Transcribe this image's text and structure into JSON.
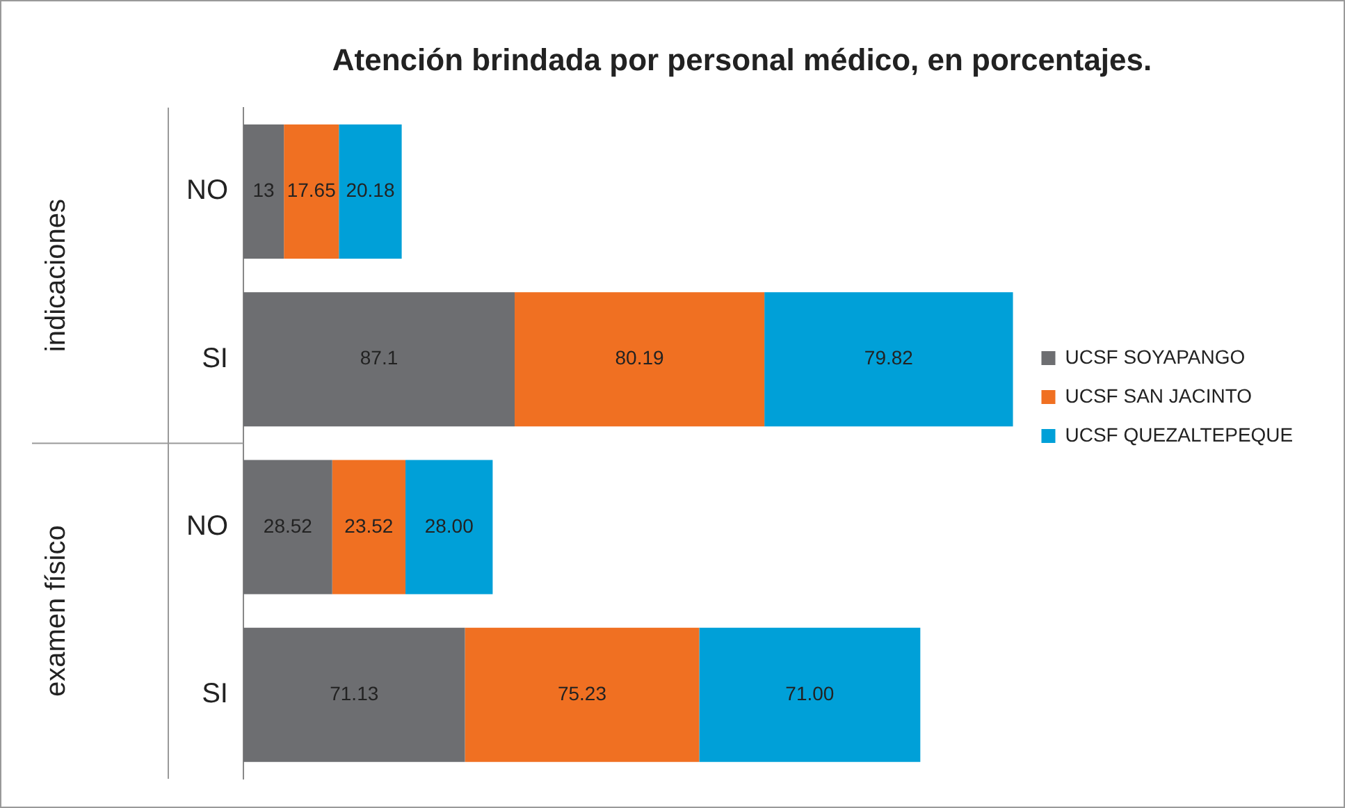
{
  "chart_data": {
    "type": "bar",
    "orientation": "horizontal",
    "stacked": true,
    "title": "Atención brindada por personal médico, en porcentajes.",
    "categories": [
      "NO",
      "SI",
      "NO",
      "SI"
    ],
    "series": [
      {
        "name": "UCSF SOYAPANGO",
        "color": "#6d6e71",
        "values": [
          13,
          87.1,
          28.52,
          71.13
        ],
        "value_labels": [
          "13",
          "87.1",
          "28.52",
          "71.13"
        ]
      },
      {
        "name": "UCSF SAN JACINTO",
        "color": "#f07022",
        "values": [
          17.65,
          80.19,
          23.52,
          75.23
        ],
        "value_labels": [
          "17.65",
          "80.19",
          "23.52",
          "75.23"
        ]
      },
      {
        "name": "UCSF QUEZALTEPEQUE",
        "color": "#00a0d8",
        "values": [
          20.18,
          79.82,
          28.0,
          71.0
        ],
        "value_labels": [
          "20.18",
          "79.82",
          "28.00",
          "71.00"
        ]
      }
    ],
    "annotations": [
      "indicaciones",
      "examen físico"
    ],
    "tick_labels": "y",
    "legend": "right",
    "grid": false
  }
}
